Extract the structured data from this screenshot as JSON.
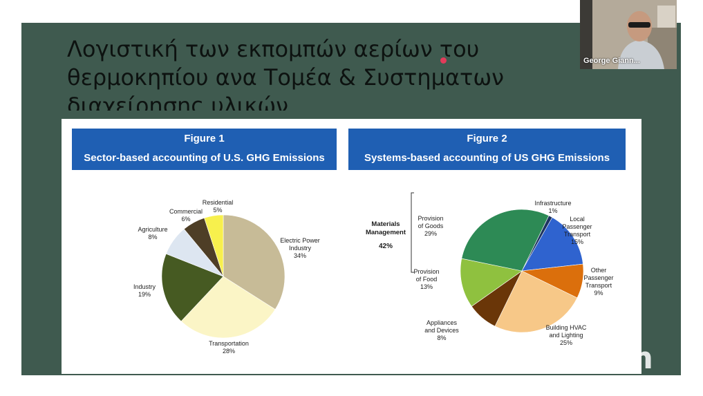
{
  "slide": {
    "title_lines": [
      "Λογιστική των εκπομπών αερίων του",
      "θερμοκηπίου ανα Τομέα & Συστηματων",
      "διαχείρησης υλικών."
    ]
  },
  "webcam": {
    "name": "George Giann..."
  },
  "watermark": "zoom",
  "colors": {
    "slide_bg": "#3f5a4f",
    "figure_header": "#1f5fb3"
  },
  "chart_data": [
    {
      "type": "pie",
      "figure_label": "Figure 1",
      "title": "Sector-based accounting of U.S. GHG Emissions",
      "slices": [
        {
          "label": "Electric Power Industry",
          "value": 34,
          "value_label": "34%",
          "color": "#c7bb97"
        },
        {
          "label": "Transportation",
          "value": 28,
          "value_label": "28%",
          "color": "#fbf5c6"
        },
        {
          "label": "Industry",
          "value": 19,
          "value_label": "19%",
          "color": "#465a22"
        },
        {
          "label": "Agriculture",
          "value": 8,
          "value_label": "8%",
          "color": "#dde6f1"
        },
        {
          "label": "Commercial",
          "value": 6,
          "value_label": "6%",
          "color": "#4e3e26"
        },
        {
          "label": "Residential",
          "value": 5,
          "value_label": "5%",
          "color": "#f7f04d"
        }
      ]
    },
    {
      "type": "pie",
      "figure_label": "Figure 2",
      "title": "Systems-based accounting of US GHG Emissions",
      "group": {
        "label": "Materials Management",
        "value_label": "42%"
      },
      "slices": [
        {
          "label": "Infrastructure",
          "value": 1,
          "value_label": "1%",
          "color": "#1e3460"
        },
        {
          "label": "Local Passenger Transport",
          "value": 15,
          "value_label": "15%",
          "color": "#2f63cf"
        },
        {
          "label": "Other Passenger Transport",
          "value": 9,
          "value_label": "9%",
          "color": "#db6f0c"
        },
        {
          "label": "Building HVAC and Lighting",
          "value": 25,
          "value_label": "25%",
          "color": "#f7c888"
        },
        {
          "label": "Appliances and Devices",
          "value": 8,
          "value_label": "8%",
          "color": "#6a3608"
        },
        {
          "label": "Provision of Food",
          "value": 13,
          "value_label": "13%",
          "color": "#8fc13f"
        },
        {
          "label": "Provision of Goods",
          "value": 29,
          "value_label": "29%",
          "color": "#2d8a55"
        }
      ]
    }
  ]
}
